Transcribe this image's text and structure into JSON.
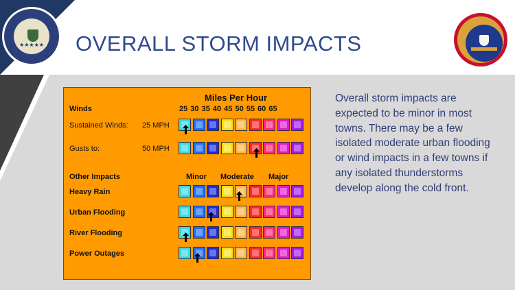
{
  "slide": {
    "title": "OVERALL STORM IMPACTS",
    "logo_left": "state-department-seal",
    "logo_right": "state-emergency-seal"
  },
  "panel": {
    "header": "Miles Per Hour",
    "winds_label": "Winds",
    "mph_scale": "25 30 35 40 45 50 55 60 65",
    "sustained_label": "Sustained Winds:",
    "sustained_value": "25 MPH",
    "gusts_label": "Gusts to:",
    "gusts_value": "50 MPH",
    "other_label": "Other Impacts",
    "minor": "Minor",
    "moderate": "Moderate",
    "major": "Major",
    "colors": [
      "#3ad8e8",
      "#1e6fff",
      "#1f2bd8",
      "#f4e21a",
      "#ffb64a",
      "#ff2a2a",
      "#ff2a7a",
      "#e21acc",
      "#a21ae8"
    ],
    "rows": [
      {
        "name": "sustained-winds",
        "arrow_index": 0.5
      },
      {
        "name": "gusts",
        "arrow_index": 5.5
      },
      {
        "name": "heavy-rain",
        "label": "Heavy Rain",
        "arrow_index": 4.3
      },
      {
        "name": "urban-flooding",
        "label": "Urban Flooding",
        "arrow_index": 2.3
      },
      {
        "name": "river-flooding",
        "label": "River Flooding",
        "arrow_index": 0.5
      },
      {
        "name": "power-outages",
        "label": "Power Outages",
        "arrow_index": 1.3
      }
    ]
  },
  "description": "Overall storm impacts are expected to be minor in most towns.  There may be a few isolated moderate urban flooding or wind impacts in a few towns if any isolated thunderstorms develop along the cold front."
}
